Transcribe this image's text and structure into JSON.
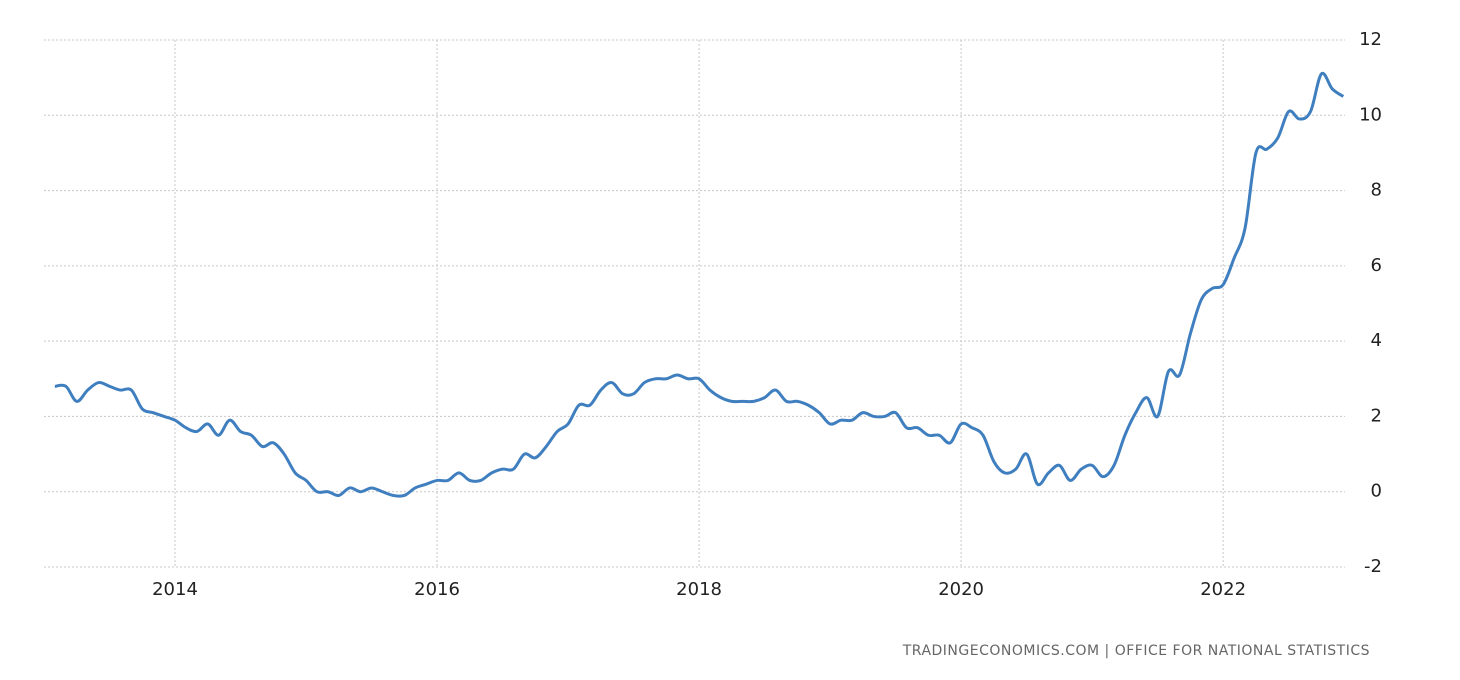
{
  "chart_data": {
    "type": "line",
    "source": "TRADINGECONOMICS.COM | OFFICE FOR NATIONAL STATISTICS",
    "color": "#3f7fbf",
    "grid": true,
    "xlim": [
      2013,
      2022.93
    ],
    "xticks": [
      2014,
      2016,
      2018,
      2020,
      2022
    ],
    "ylim": [
      -2,
      12
    ],
    "yticks": [
      -2,
      0,
      2,
      4,
      6,
      8,
      10,
      12
    ],
    "x": [
      2013.083,
      2013.167,
      2013.25,
      2013.333,
      2013.417,
      2013.5,
      2013.583,
      2013.667,
      2013.75,
      2013.833,
      2013.917,
      2014,
      2014.083,
      2014.167,
      2014.25,
      2014.333,
      2014.417,
      2014.5,
      2014.583,
      2014.667,
      2014.75,
      2014.833,
      2014.917,
      2015,
      2015.083,
      2015.167,
      2015.25,
      2015.333,
      2015.417,
      2015.5,
      2015.583,
      2015.667,
      2015.75,
      2015.833,
      2015.917,
      2016,
      2016.083,
      2016.167,
      2016.25,
      2016.333,
      2016.417,
      2016.5,
      2016.583,
      2016.667,
      2016.75,
      2016.833,
      2016.917,
      2017,
      2017.083,
      2017.167,
      2017.25,
      2017.333,
      2017.417,
      2017.5,
      2017.583,
      2017.667,
      2017.75,
      2017.833,
      2017.917,
      2018,
      2018.083,
      2018.167,
      2018.25,
      2018.333,
      2018.417,
      2018.5,
      2018.583,
      2018.667,
      2018.75,
      2018.833,
      2018.917,
      2019,
      2019.083,
      2019.167,
      2019.25,
      2019.333,
      2019.417,
      2019.5,
      2019.583,
      2019.667,
      2019.75,
      2019.833,
      2019.917,
      2020,
      2020.083,
      2020.167,
      2020.25,
      2020.333,
      2020.417,
      2020.5,
      2020.583,
      2020.667,
      2020.75,
      2020.833,
      2020.917,
      2021,
      2021.083,
      2021.167,
      2021.25,
      2021.333,
      2021.417,
      2021.5,
      2021.583,
      2021.667,
      2021.75,
      2021.833,
      2021.917,
      2022,
      2022.083,
      2022.167,
      2022.25,
      2022.333,
      2022.417,
      2022.5,
      2022.583,
      2022.667,
      2022.75,
      2022.833,
      2022.917
    ],
    "values": [
      2.8,
      2.8,
      2.4,
      2.7,
      2.9,
      2.8,
      2.7,
      2.7,
      2.2,
      2.1,
      2.0,
      1.9,
      1.7,
      1.6,
      1.8,
      1.5,
      1.9,
      1.6,
      1.5,
      1.2,
      1.3,
      1.0,
      0.5,
      0.3,
      0.0,
      0.0,
      -0.1,
      0.1,
      0.0,
      0.1,
      0.0,
      -0.1,
      -0.1,
      0.1,
      0.2,
      0.3,
      0.3,
      0.5,
      0.3,
      0.3,
      0.5,
      0.6,
      0.6,
      1.0,
      0.9,
      1.2,
      1.6,
      1.8,
      2.3,
      2.3,
      2.7,
      2.9,
      2.6,
      2.6,
      2.9,
      3.0,
      3.0,
      3.1,
      3.0,
      3.0,
      2.7,
      2.5,
      2.4,
      2.4,
      2.4,
      2.5,
      2.7,
      2.4,
      2.4,
      2.3,
      2.1,
      1.8,
      1.9,
      1.9,
      2.1,
      2.0,
      2.0,
      2.1,
      1.7,
      1.7,
      1.5,
      1.5,
      1.3,
      1.8,
      1.7,
      1.5,
      0.8,
      0.5,
      0.6,
      1.0,
      0.2,
      0.5,
      0.7,
      0.3,
      0.6,
      0.7,
      0.4,
      0.7,
      1.5,
      2.1,
      2.5,
      2.0,
      3.2,
      3.1,
      4.2,
      5.1,
      5.4,
      5.5,
      6.2,
      7.0,
      9.0,
      9.1,
      9.4,
      10.1,
      9.9,
      10.1,
      11.1,
      10.7,
      10.5
    ]
  }
}
